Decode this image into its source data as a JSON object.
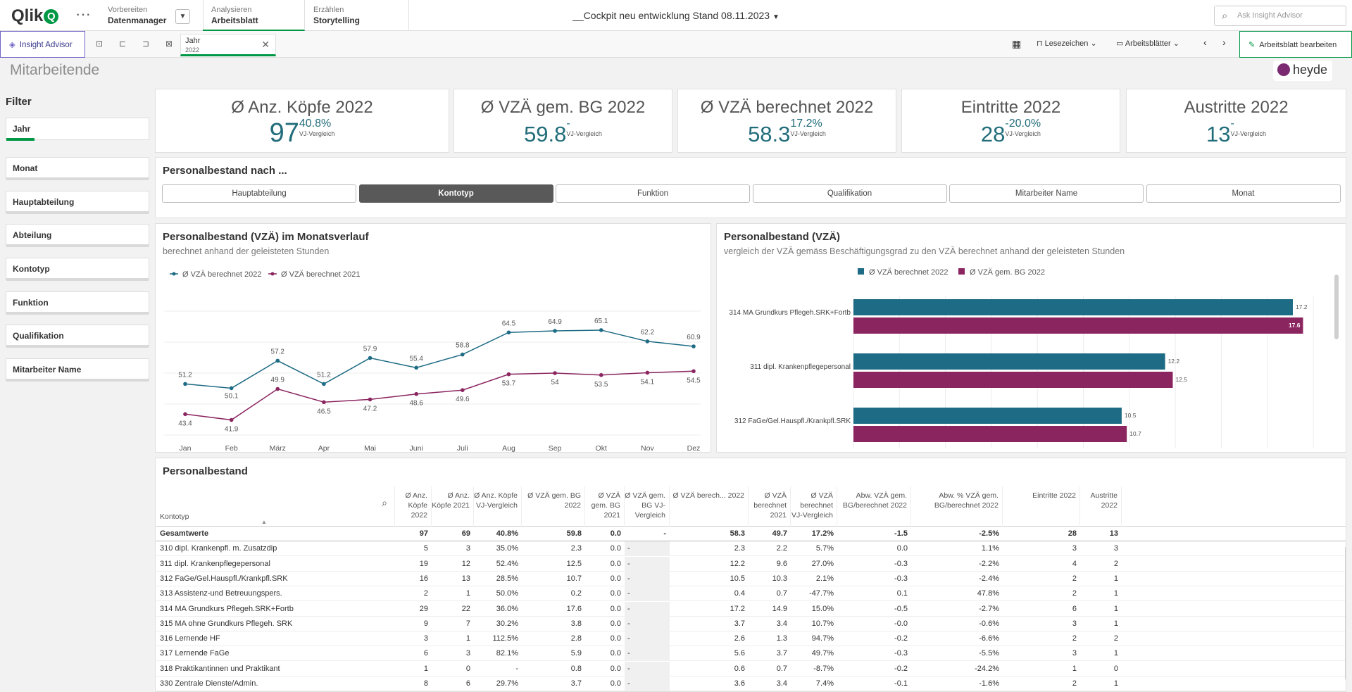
{
  "app": {
    "logo_text": "Qlik",
    "logo_letter": "Q",
    "more_icon": "ellipsis-icon",
    "nav": [
      {
        "sub": "Vorbereiten",
        "main": "Datenmanager"
      },
      {
        "sub": "Analysieren",
        "main": "Arbeitsblatt"
      },
      {
        "sub": "Erzählen",
        "main": "Storytelling"
      }
    ],
    "title": "__Cockpit neu entwicklung Stand 08.11.2023",
    "search_placeholder": "Ask Insight Advisor"
  },
  "toolbar": {
    "insight_advisor": "Insight Advisor",
    "selection": {
      "field": "Jahr",
      "value": "2022"
    },
    "bookmarks": "Lesezeichen",
    "sheets": "Arbeitsblätter",
    "edit_sheet": "Arbeitsblatt bearbeiten"
  },
  "sheet": {
    "title": "Mitarbeitende",
    "brand": "heyde"
  },
  "filters": {
    "title": "Filter",
    "items": [
      "Jahr",
      "Monat",
      "Hauptabteilung",
      "Abteilung",
      "Kontotyp",
      "Funktion",
      "Qualifikation",
      "Mitarbeiter Name"
    ]
  },
  "kpis": [
    {
      "title": "Ø Anz. Köpfe 2022",
      "value": "97",
      "pct": "40.8%",
      "cmp": "VJ-Vergleich"
    },
    {
      "title": "Ø VZÄ gem. BG 2022",
      "value": "59.8",
      "pct": "-",
      "cmp": "VJ-Vergleich"
    },
    {
      "title": "Ø VZÄ berechnet 2022",
      "value": "58.3",
      "pct": "17.2%",
      "cmp": "VJ-Vergleich"
    },
    {
      "title": "Eintritte 2022",
      "value": "28",
      "pct": "-20.0%",
      "cmp": "VJ-Vergleich"
    },
    {
      "title": "Austritte 2022",
      "value": "13",
      "pct": "-",
      "cmp": "VJ-Vergleich"
    }
  ],
  "dimension_picker": {
    "title": "Personalbestand nach ...",
    "buttons": [
      "Hauptabteilung",
      "Kontotyp",
      "Funktion",
      "Qualifikation",
      "Mitarbeiter Name",
      "Monat"
    ],
    "selected": "Kontotyp"
  },
  "line_chart": {
    "title": "Personalbestand (VZÄ) im Monatsverlauf",
    "subtitle": "berechnet anhand der geleisteten Stunden"
  },
  "bar_chart": {
    "title": "Personalbestand (VZÄ)",
    "subtitle": "vergleich der VZÄ gemäss Beschäftigungsgrad zu den VZÄ berechnet anhand der geleisteten Stunden"
  },
  "chart_data": [
    {
      "type": "line",
      "title": "Personalbestand (VZÄ) im Monatsverlauf",
      "categories": [
        "Jan",
        "Feb",
        "März",
        "Apr",
        "Mai",
        "Juni",
        "Juli",
        "Aug",
        "Sep",
        "Okt",
        "Nov",
        "Dez"
      ],
      "series": [
        {
          "name": "Ø VZÄ berechnet 2022",
          "color": "#1d6b84",
          "values": [
            51.2,
            50.1,
            57.2,
            51.2,
            57.9,
            55.4,
            58.8,
            64.5,
            64.9,
            65.1,
            62.2,
            60.9
          ]
        },
        {
          "name": "Ø VZÄ berechnet 2021",
          "color": "#8b2560",
          "values": [
            43.4,
            41.9,
            49.9,
            46.5,
            47.2,
            48.6,
            49.6,
            53.7,
            54.0,
            53.5,
            54.1,
            54.5
          ]
        }
      ],
      "ylim": [
        38,
        70
      ],
      "grid": true,
      "legend": "top-left"
    },
    {
      "type": "bar",
      "title": "Personalbestand (VZÄ)",
      "orientation": "horizontal",
      "categories": [
        "314 MA Grundkurs Pflegeh.SRK+Fortb",
        "311 dipl. Krankenpflegepersonal",
        "312 FaGe/Gel.Hauspfl./Krankpfl.SRK"
      ],
      "series": [
        {
          "name": "Ø VZÄ berechnet 2022",
          "color": "#1d6b84",
          "values": [
            17.2,
            12.2,
            10.5
          ]
        },
        {
          "name": "Ø VZÄ gem. BG 2022",
          "color": "#8b2560",
          "values": [
            17.6,
            12.5,
            10.7
          ]
        }
      ],
      "xlim": [
        0,
        18
      ],
      "grid": true,
      "legend": "top"
    }
  ],
  "table": {
    "title": "Personalbestand",
    "columns": [
      "Kontotyp",
      "Ø Anz. Köpfe 2022",
      "Ø Anz. Köpfe 2021",
      "Ø Anz. Köpfe VJ-Vergleich",
      "Ø VZÄ gem. BG 2022",
      "Ø VZÄ gem. BG 2021",
      "Ø VZÄ gem. BG VJ-Vergleich",
      "Ø VZÄ berech... 2022",
      "Ø VZÄ berechnet 2021",
      "Ø VZÄ berechnet VJ-Vergleich",
      "Abw. VZÄ gem. BG/berechnet 2022",
      "Abw. % VZÄ gem. BG/berechnet 2022",
      "Eintritte 2022",
      "Austritte 2022"
    ],
    "rows": [
      [
        "Gesamtwerte",
        "97",
        "69",
        "40.8%",
        "59.8",
        "0.0",
        "-",
        "58.3",
        "49.7",
        "17.2%",
        "-1.5",
        "-2.5%",
        "28",
        "13"
      ],
      [
        "310 dipl. Krankenpfl. m. Zusatzdip",
        "5",
        "3",
        "35.0%",
        "2.3",
        "0.0",
        "-",
        "2.3",
        "2.2",
        "5.7%",
        "0.0",
        "1.1%",
        "3",
        "3"
      ],
      [
        "311 dipl. Krankenpflegepersonal",
        "19",
        "12",
        "52.4%",
        "12.5",
        "0.0",
        "-",
        "12.2",
        "9.6",
        "27.0%",
        "-0.3",
        "-2.2%",
        "4",
        "2"
      ],
      [
        "312 FaGe/Gel.Hauspfl./Krankpfl.SRK",
        "16",
        "13",
        "28.5%",
        "10.7",
        "0.0",
        "-",
        "10.5",
        "10.3",
        "2.1%",
        "-0.3",
        "-2.4%",
        "2",
        "1"
      ],
      [
        "313 Assistenz-und Betreuungspers.",
        "2",
        "1",
        "50.0%",
        "0.2",
        "0.0",
        "-",
        "0.4",
        "0.7",
        "-47.7%",
        "0.1",
        "47.8%",
        "2",
        "1"
      ],
      [
        "314 MA Grundkurs Pflegeh.SRK+Fortb",
        "29",
        "22",
        "36.0%",
        "17.6",
        "0.0",
        "-",
        "17.2",
        "14.9",
        "15.0%",
        "-0.5",
        "-2.7%",
        "6",
        "1"
      ],
      [
        "315 MA ohne Grundkurs Pflegeh. SRK",
        "9",
        "7",
        "30.2%",
        "3.8",
        "0.0",
        "-",
        "3.7",
        "3.4",
        "10.7%",
        "-0.0",
        "-0.6%",
        "3",
        "1"
      ],
      [
        "316 Lernende HF",
        "3",
        "1",
        "112.5%",
        "2.8",
        "0.0",
        "-",
        "2.6",
        "1.3",
        "94.7%",
        "-0.2",
        "-6.6%",
        "2",
        "2"
      ],
      [
        "317 Lernende FaGe",
        "6",
        "3",
        "82.1%",
        "5.9",
        "0.0",
        "-",
        "5.6",
        "3.7",
        "49.7%",
        "-0.3",
        "-5.5%",
        "3",
        "1"
      ],
      [
        "318 Praktikantinnen und Praktikant",
        "1",
        "0",
        "-",
        "0.8",
        "0.0",
        "-",
        "0.6",
        "0.7",
        "-8.7%",
        "-0.2",
        "-24.2%",
        "1",
        "0"
      ],
      [
        "330 Zentrale Dienste/Admin.",
        "8",
        "6",
        "29.7%",
        "3.7",
        "0.0",
        "-",
        "3.6",
        "3.4",
        "7.4%",
        "-0.1",
        "-1.6%",
        "2",
        "1"
      ]
    ]
  }
}
